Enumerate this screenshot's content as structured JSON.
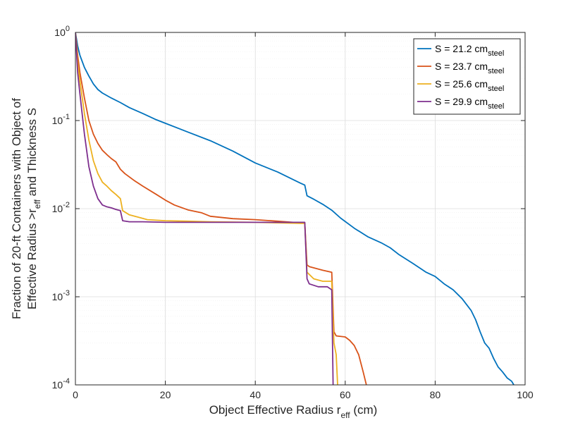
{
  "chart_data": {
    "type": "line",
    "title": "",
    "xlabel": {
      "main": "Object Effective Radius r",
      "sub": "eff",
      "tail": " (cm)"
    },
    "ylabel": {
      "line1": "Fraction of 20-ft Containers with Object of",
      "line2_main": "Effective Radius >r",
      "line2_sub": "eff",
      "line2_tail": "  and Thickness S"
    },
    "xlim": [
      0,
      100
    ],
    "ylim": [
      0.0001,
      1
    ],
    "yscale": "log",
    "grid": true,
    "legend_position": "top-right",
    "x_ticks": [
      "0",
      "20",
      "40",
      "60",
      "80",
      "100"
    ],
    "y_ticks": [
      {
        "base": "10",
        "exp": "-4"
      },
      {
        "base": "10",
        "exp": "-3"
      },
      {
        "base": "10",
        "exp": "-2"
      },
      {
        "base": "10",
        "exp": "-1"
      },
      {
        "base": "10",
        "exp": "0"
      }
    ],
    "series": [
      {
        "name": "S = 21.2 cm",
        "name_sub": "steel",
        "color": "#0072BD",
        "points": [
          [
            0,
            1.0
          ],
          [
            0.5,
            0.7
          ],
          [
            1,
            0.55
          ],
          [
            2,
            0.4
          ],
          [
            3,
            0.32
          ],
          [
            4,
            0.26
          ],
          [
            5,
            0.225
          ],
          [
            6,
            0.205
          ],
          [
            8,
            0.18
          ],
          [
            10,
            0.16
          ],
          [
            12,
            0.14
          ],
          [
            15,
            0.12
          ],
          [
            18,
            0.102
          ],
          [
            20,
            0.093
          ],
          [
            25,
            0.074
          ],
          [
            30,
            0.059
          ],
          [
            35,
            0.045
          ],
          [
            40,
            0.033
          ],
          [
            45,
            0.026
          ],
          [
            50,
            0.0195
          ],
          [
            51,
            0.0185
          ],
          [
            51.5,
            0.014
          ],
          [
            53,
            0.0128
          ],
          [
            55,
            0.0112
          ],
          [
            57,
            0.0096
          ],
          [
            59,
            0.0078
          ],
          [
            62,
            0.006
          ],
          [
            65,
            0.0048
          ],
          [
            68,
            0.0041
          ],
          [
            70,
            0.0036
          ],
          [
            72,
            0.003
          ],
          [
            75,
            0.0024
          ],
          [
            78,
            0.0019
          ],
          [
            80,
            0.0017
          ],
          [
            82,
            0.0014
          ],
          [
            84,
            0.0012
          ],
          [
            86,
            0.00095
          ],
          [
            88,
            0.0007
          ],
          [
            89,
            0.00055
          ],
          [
            90,
            0.0004
          ],
          [
            91,
            0.0003
          ],
          [
            92,
            0.00026
          ],
          [
            93,
            0.0002
          ],
          [
            94,
            0.00016
          ],
          [
            95,
            0.00014
          ],
          [
            96,
            0.00012
          ],
          [
            97,
            0.00011
          ],
          [
            97.5,
            0.0001
          ]
        ]
      },
      {
        "name": "S = 23.7 cm",
        "name_sub": "steel",
        "color": "#D95319",
        "points": [
          [
            0,
            1.0
          ],
          [
            0.5,
            0.55
          ],
          [
            1,
            0.35
          ],
          [
            2,
            0.18
          ],
          [
            3,
            0.1
          ],
          [
            4,
            0.07
          ],
          [
            5,
            0.055
          ],
          [
            6,
            0.046
          ],
          [
            7,
            0.041
          ],
          [
            8,
            0.037
          ],
          [
            9,
            0.034
          ],
          [
            10,
            0.028
          ],
          [
            11,
            0.025
          ],
          [
            13,
            0.021
          ],
          [
            15,
            0.018
          ],
          [
            18,
            0.0145
          ],
          [
            20,
            0.0125
          ],
          [
            22,
            0.011
          ],
          [
            25,
            0.0097
          ],
          [
            28,
            0.009
          ],
          [
            30,
            0.0082
          ],
          [
            35,
            0.0077
          ],
          [
            40,
            0.0075
          ],
          [
            45,
            0.0072
          ],
          [
            50,
            0.0069
          ],
          [
            51,
            0.0069
          ],
          [
            51.5,
            0.0023
          ],
          [
            52,
            0.0022
          ],
          [
            55,
            0.002
          ],
          [
            57,
            0.0019
          ],
          [
            57.5,
            0.0004
          ],
          [
            58,
            0.00036
          ],
          [
            60,
            0.00035
          ],
          [
            61,
            0.00032
          ],
          [
            62,
            0.00028
          ],
          [
            63,
            0.00022
          ],
          [
            64,
            0.00014
          ],
          [
            64.7,
            0.0001
          ]
        ]
      },
      {
        "name": "S = 25.6 cm",
        "name_sub": "steel",
        "color": "#EDB120",
        "points": [
          [
            0,
            1.0
          ],
          [
            0.5,
            0.45
          ],
          [
            1,
            0.28
          ],
          [
            2,
            0.12
          ],
          [
            3,
            0.06
          ],
          [
            4,
            0.035
          ],
          [
            5,
            0.025
          ],
          [
            6,
            0.02
          ],
          [
            7,
            0.018
          ],
          [
            8,
            0.016
          ],
          [
            9,
            0.0145
          ],
          [
            10,
            0.013
          ],
          [
            10.5,
            0.0095
          ],
          [
            12,
            0.0085
          ],
          [
            14,
            0.008
          ],
          [
            16,
            0.0075
          ],
          [
            20,
            0.0073
          ],
          [
            25,
            0.0072
          ],
          [
            30,
            0.0071
          ],
          [
            40,
            0.007
          ],
          [
            50,
            0.0068
          ],
          [
            51,
            0.0068
          ],
          [
            51.5,
            0.0019
          ],
          [
            53,
            0.0016
          ],
          [
            55,
            0.0015
          ],
          [
            57,
            0.0015
          ],
          [
            57.5,
            0.0003
          ],
          [
            58,
            0.00022
          ],
          [
            58.3,
            0.0001
          ]
        ]
      },
      {
        "name": "S = 29.9 cm",
        "name_sub": "steel",
        "color": "#7E2F8E",
        "points": [
          [
            0,
            1.0
          ],
          [
            0.5,
            0.35
          ],
          [
            1,
            0.2
          ],
          [
            2,
            0.07
          ],
          [
            3,
            0.03
          ],
          [
            4,
            0.018
          ],
          [
            5,
            0.013
          ],
          [
            6,
            0.011
          ],
          [
            7,
            0.0105
          ],
          [
            8,
            0.0102
          ],
          [
            9,
            0.0098
          ],
          [
            10,
            0.0095
          ],
          [
            10.5,
            0.0073
          ],
          [
            12,
            0.0071
          ],
          [
            15,
            0.0071
          ],
          [
            20,
            0.007
          ],
          [
            30,
            0.007
          ],
          [
            40,
            0.007
          ],
          [
            50,
            0.007
          ],
          [
            51,
            0.007
          ],
          [
            51.5,
            0.0016
          ],
          [
            52,
            0.0014
          ],
          [
            54,
            0.0013
          ],
          [
            56,
            0.0013
          ],
          [
            57,
            0.0012
          ],
          [
            57.3,
            0.0001
          ]
        ]
      }
    ]
  }
}
